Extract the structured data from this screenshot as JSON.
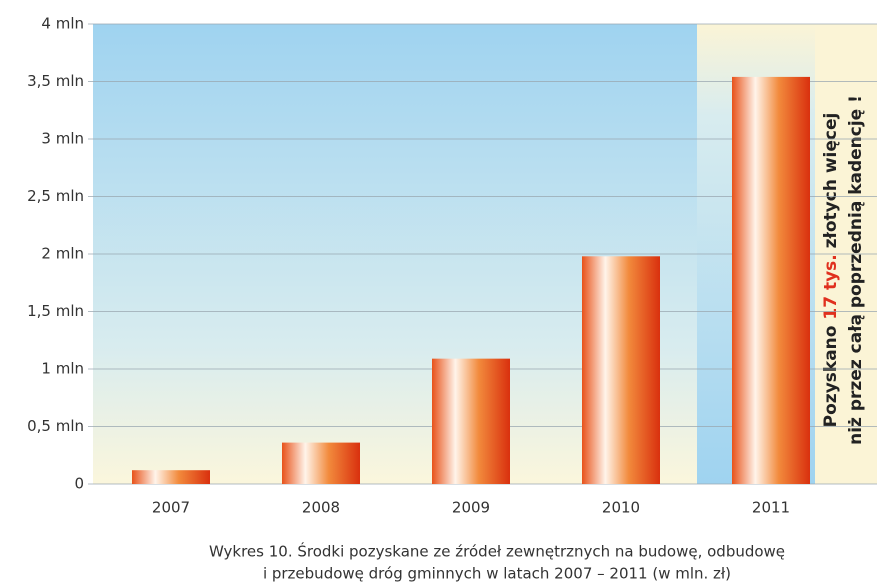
{
  "chart_data": {
    "type": "bar",
    "title": [
      "Wykres 10. Środki pozyskane ze źródeł zewnętrznych na budowę, odbudowę",
      "i przebudowę dróg gminnych w latach 2007 – 2011 (w mln. zł)"
    ],
    "annotation": [
      [
        "Pozyskano ",
        "17 tys.",
        " złotych więcej"
      ],
      [
        "niż przez całą poprzednią kadencję !"
      ]
    ],
    "categories": [
      "2007",
      "2008",
      "2009",
      "2010",
      "2011"
    ],
    "values": [
      0.12,
      0.36,
      1.09,
      1.98,
      3.54
    ],
    "ylim": [
      0,
      4
    ],
    "yticks": [
      0,
      {
        "value": 0.5,
        "label": "0,5 mln"
      },
      {
        "value": 1,
        "label": "1 mln"
      },
      {
        "value": 1.5,
        "label": "1,5 mln"
      },
      {
        "value": 2,
        "label": "2 mln"
      },
      {
        "value": 2.5,
        "label": "2,5 mln"
      },
      {
        "value": 3,
        "label": "3 mln"
      },
      {
        "value": 3.5,
        "label": "3,5 mln"
      },
      {
        "value": 4,
        "label": "4 mln"
      }
    ],
    "grid": true
  }
}
